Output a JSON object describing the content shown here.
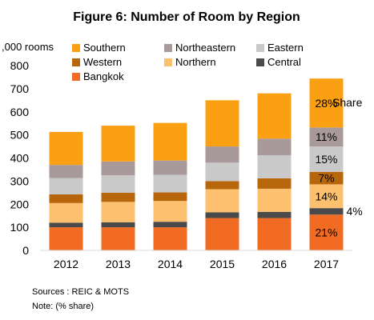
{
  "chart_data": {
    "type": "bar",
    "stacked": true,
    "title": "Figure 6: Number of Room by Region",
    "ylabel": ",000 rooms",
    "xlabel": "",
    "ylim": [
      0,
      800
    ],
    "yticks": [
      0,
      100,
      200,
      300,
      400,
      500,
      600,
      700,
      800
    ],
    "grid": false,
    "categories": [
      "2012",
      "2013",
      "2014",
      "2015",
      "2016",
      "2017"
    ],
    "series": [
      {
        "name": "Bangkok",
        "color": "#F26B22",
        "values": [
          100,
          100,
          100,
          140,
          140,
          155
        ]
      },
      {
        "name": "Central",
        "color": "#4A4A4A",
        "values": [
          20,
          22,
          24,
          25,
          27,
          28
        ]
      },
      {
        "name": "Northern",
        "color": "#FDC06F",
        "values": [
          85,
          88,
          90,
          100,
          100,
          103
        ]
      },
      {
        "name": "Western",
        "color": "#B8660B",
        "values": [
          38,
          40,
          37,
          35,
          45,
          54
        ]
      },
      {
        "name": "Eastern",
        "color": "#C9C9C9",
        "values": [
          70,
          75,
          76,
          80,
          100,
          110
        ]
      },
      {
        "name": "Northeastern",
        "color": "#A89A9A",
        "values": [
          57,
          60,
          62,
          70,
          72,
          82
        ]
      },
      {
        "name": "Southern",
        "color": "#FCA013",
        "values": [
          143,
          155,
          163,
          200,
          196,
          212
        ]
      }
    ],
    "legend": {
      "placement": "top",
      "order": [
        "Southern",
        "Northeastern",
        "Eastern",
        "Western",
        "Northern",
        "Central",
        "Bangkok"
      ]
    },
    "annotations": [
      {
        "series": "Southern",
        "category": "2017",
        "text": "28%"
      },
      {
        "series": "Northeastern",
        "category": "2017",
        "text": "11%"
      },
      {
        "series": "Eastern",
        "category": "2017",
        "text": "15%"
      },
      {
        "series": "Western",
        "category": "2017",
        "text": "7%"
      },
      {
        "series": "Northern",
        "category": "2017",
        "text": "14%"
      },
      {
        "series": "Central",
        "category": "2017",
        "text": "4%"
      },
      {
        "series": "Bangkok",
        "category": "2017",
        "text": "21%"
      }
    ],
    "share_label": "Share"
  },
  "notes": {
    "sources": "Sources : REIC & MOTS",
    "note": "Note: (% share)"
  }
}
